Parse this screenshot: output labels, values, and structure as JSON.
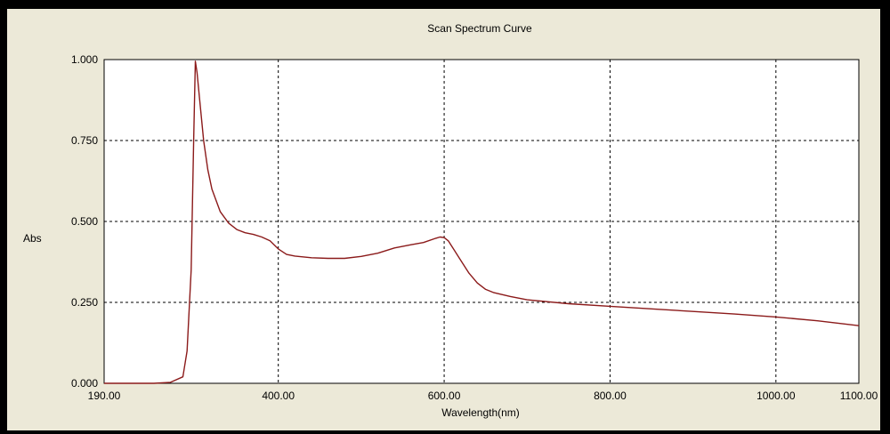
{
  "chart_data": {
    "type": "line",
    "title": "Scan Spectrum Curve",
    "xlabel": "Wavelength(nm)",
    "ylabel": "Abs",
    "xlim": [
      190,
      1100
    ],
    "ylim": [
      0,
      1
    ],
    "x_ticks": [
      190,
      400,
      600,
      800,
      1000,
      1100
    ],
    "x_tick_labels": [
      "190.00",
      "400.00",
      "600.00",
      "800.00",
      "1000.00",
      "1100.00"
    ],
    "y_ticks": [
      0,
      0.25,
      0.5,
      0.75,
      1.0
    ],
    "y_tick_labels": [
      "0.000",
      "0.250",
      "0.500",
      "0.750",
      "1.000"
    ],
    "grid": true,
    "colors": {
      "line": "#8b1a1a",
      "grid": "#000000",
      "plot_bg": "#ffffff",
      "frame_bg": "#ece9d8"
    },
    "series": [
      {
        "x": [
          190,
          220,
          250,
          270,
          285,
          290,
          295,
          298,
          300,
          302,
          305,
          310,
          315,
          320,
          330,
          340,
          350,
          360,
          370,
          380,
          390,
          400,
          410,
          420,
          440,
          460,
          480,
          500,
          520,
          540,
          560,
          575,
          590,
          595,
          600,
          605,
          610,
          620,
          630,
          640,
          650,
          660,
          680,
          700,
          750,
          800,
          850,
          900,
          950,
          1000,
          1050,
          1100
        ],
        "y": [
          0.0,
          0.0,
          0.0,
          0.003,
          0.02,
          0.1,
          0.35,
          0.75,
          0.995,
          0.96,
          0.88,
          0.75,
          0.66,
          0.6,
          0.53,
          0.495,
          0.475,
          0.465,
          0.46,
          0.452,
          0.44,
          0.415,
          0.398,
          0.393,
          0.388,
          0.386,
          0.386,
          0.392,
          0.402,
          0.418,
          0.428,
          0.435,
          0.448,
          0.452,
          0.45,
          0.44,
          0.42,
          0.38,
          0.34,
          0.31,
          0.29,
          0.28,
          0.268,
          0.258,
          0.246,
          0.238,
          0.23,
          0.222,
          0.214,
          0.205,
          0.193,
          0.178
        ]
      }
    ]
  }
}
